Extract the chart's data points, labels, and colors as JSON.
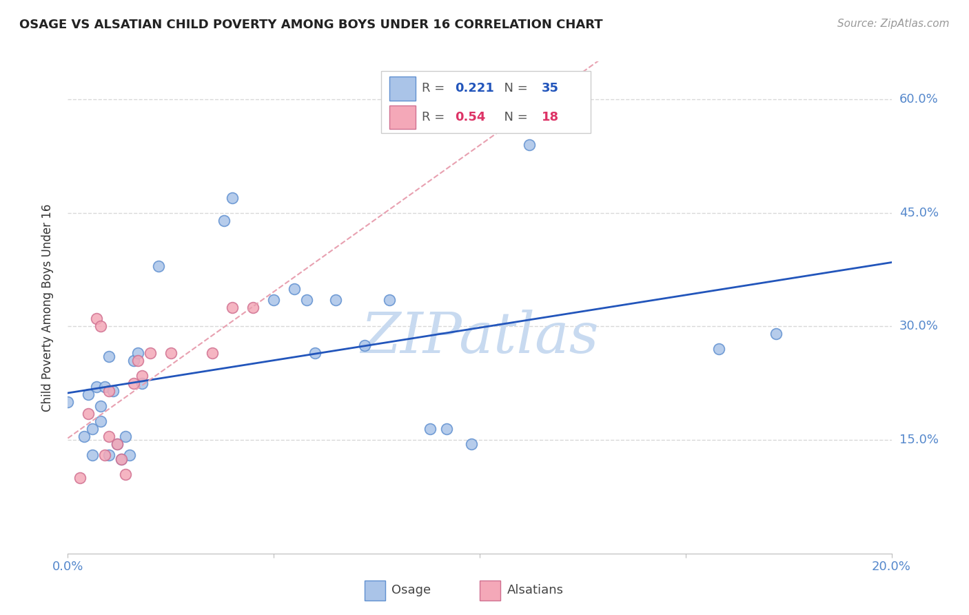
{
  "title": "OSAGE VS ALSATIAN CHILD POVERTY AMONG BOYS UNDER 16 CORRELATION CHART",
  "source": "Source: ZipAtlas.com",
  "ylabel_label": "Child Poverty Among Boys Under 16",
  "xlim": [
    0.0,
    0.2
  ],
  "ylim": [
    0.0,
    0.65
  ],
  "xticks": [
    0.0,
    0.05,
    0.1,
    0.15,
    0.2
  ],
  "xtick_labels": [
    "0.0%",
    "",
    "",
    "",
    "20.0%"
  ],
  "ytick_positions": [
    0.15,
    0.3,
    0.45,
    0.6
  ],
  "ytick_labels": [
    "15.0%",
    "30.0%",
    "45.0%",
    "60.0%"
  ],
  "background_color": "#ffffff",
  "grid_color": "#d8d8d8",
  "osage_color": "#aac4e8",
  "alsatian_color": "#f4a8b8",
  "osage_edge_color": "#6090d0",
  "alsatian_edge_color": "#d07090",
  "osage_line_color": "#2255bb",
  "alsatian_line_color": "#dd3366",
  "alsatian_line_color_dashed": "#e8a0b0",
  "R_osage": 0.221,
  "N_osage": 35,
  "R_alsatian": 0.54,
  "N_alsatian": 18,
  "legend_label_osage": "Osage",
  "legend_label_alsatian": "Alsatians",
  "osage_x": [
    0.0,
    0.004,
    0.005,
    0.006,
    0.006,
    0.007,
    0.008,
    0.008,
    0.009,
    0.01,
    0.01,
    0.011,
    0.012,
    0.013,
    0.014,
    0.015,
    0.016,
    0.017,
    0.018,
    0.022,
    0.038,
    0.04,
    0.05,
    0.055,
    0.058,
    0.06,
    0.065,
    0.072,
    0.078,
    0.088,
    0.092,
    0.098,
    0.112,
    0.158,
    0.172
  ],
  "osage_y": [
    0.2,
    0.155,
    0.21,
    0.165,
    0.13,
    0.22,
    0.175,
    0.195,
    0.22,
    0.13,
    0.26,
    0.215,
    0.145,
    0.125,
    0.155,
    0.13,
    0.255,
    0.265,
    0.225,
    0.38,
    0.44,
    0.47,
    0.335,
    0.35,
    0.335,
    0.265,
    0.335,
    0.275,
    0.335,
    0.165,
    0.165,
    0.145,
    0.54,
    0.27,
    0.29
  ],
  "alsatian_x": [
    0.003,
    0.005,
    0.007,
    0.008,
    0.009,
    0.01,
    0.01,
    0.012,
    0.013,
    0.014,
    0.016,
    0.017,
    0.018,
    0.02,
    0.025,
    0.035,
    0.04,
    0.045
  ],
  "alsatian_y": [
    0.1,
    0.185,
    0.31,
    0.3,
    0.13,
    0.215,
    0.155,
    0.145,
    0.125,
    0.105,
    0.225,
    0.255,
    0.235,
    0.265,
    0.265,
    0.265,
    0.325,
    0.325
  ],
  "watermark_text": "ZIPatlas",
  "watermark_color": "#c8daf0",
  "watermark_fontsize": 60
}
